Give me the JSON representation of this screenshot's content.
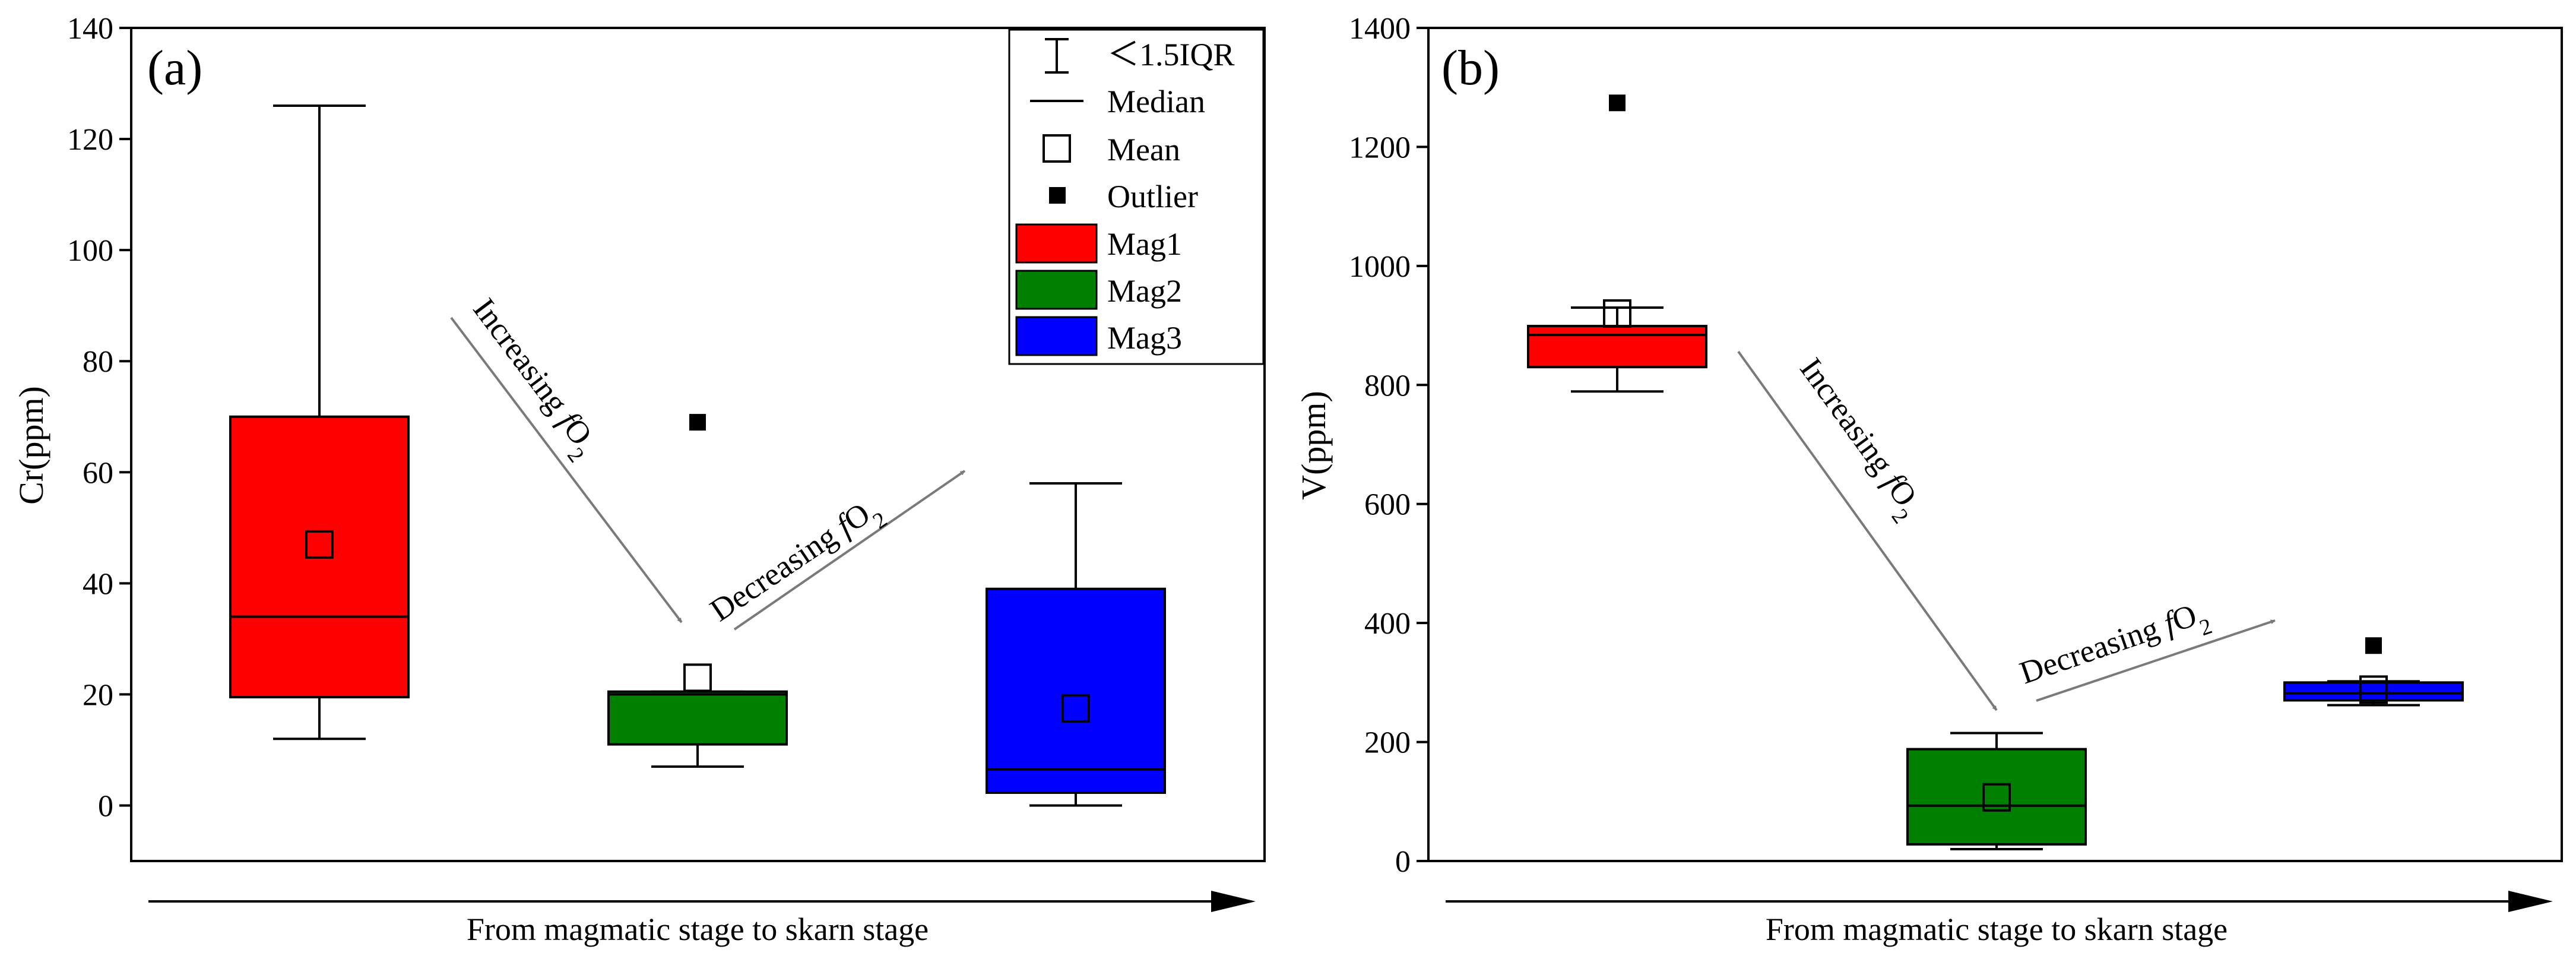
{
  "chart_data": [
    {
      "type": "box",
      "panel_label": "(a)",
      "ylabel": "Cr(ppm)",
      "xlabel": "From magmatic stage to skarn stage",
      "ylim": [
        -10,
        140
      ],
      "yticks": [
        0,
        20,
        40,
        60,
        80,
        100,
        120,
        140
      ],
      "categories": [
        "Mag1",
        "Mag2",
        "Mag3"
      ],
      "boxes": [
        {
          "name": "Mag1",
          "color": "#ff0000",
          "whisker_low": 12,
          "q1": 19.5,
          "median": 34,
          "q3": 70,
          "whisker_high": 126,
          "mean": 47,
          "outliers": []
        },
        {
          "name": "Mag2",
          "color": "#008000",
          "whisker_low": 7,
          "q1": 11,
          "median": 20,
          "q3": 20.5,
          "whisker_high": 20.5,
          "mean": 23,
          "outliers": [
            69
          ]
        },
        {
          "name": "Mag3",
          "color": "#0000ff",
          "whisker_low": 0,
          "q1": 2.3,
          "median": 6.5,
          "q3": 39,
          "whisker_high": 58,
          "mean": 17.5,
          "outliers": []
        }
      ],
      "annotations": [
        {
          "text": "Increasing ",
          "italic": "f",
          "main": "O",
          "sub": "2"
        },
        {
          "text": "Decreasing ",
          "italic": "f",
          "main": "O",
          "sub": "2"
        }
      ],
      "legend": {
        "placement": "top-right",
        "items": [
          {
            "label": "＜1.5IQR",
            "kind": "whisker"
          },
          {
            "label": "Median",
            "kind": "line"
          },
          {
            "label": "Mean",
            "kind": "open-square"
          },
          {
            "label": "Outlier",
            "kind": "filled-square"
          },
          {
            "label": "Mag1",
            "kind": "box",
            "color": "#ff0000"
          },
          {
            "label": "Mag2",
            "kind": "box",
            "color": "#008000"
          },
          {
            "label": "Mag3",
            "kind": "box",
            "color": "#0000ff"
          }
        ]
      }
    },
    {
      "type": "box",
      "panel_label": "(b)",
      "ylabel": "V(ppm)",
      "xlabel": "From magmatic stage to skarn stage",
      "ylim": [
        0,
        1400
      ],
      "yticks": [
        0,
        200,
        400,
        600,
        800,
        1000,
        1200,
        1400
      ],
      "categories": [
        "Mag1",
        "Mag2",
        "Mag3"
      ],
      "boxes": [
        {
          "name": "Mag1",
          "color": "#ff0000",
          "whisker_low": 789,
          "q1": 830,
          "median": 884,
          "q3": 899,
          "whisker_high": 930,
          "mean": 920,
          "outliers": [
            1274
          ]
        },
        {
          "name": "Mag2",
          "color": "#008000",
          "whisker_low": 20,
          "q1": 28,
          "median": 93,
          "q3": 188,
          "whisker_high": 215,
          "mean": 107,
          "outliers": []
        },
        {
          "name": "Mag3",
          "color": "#0000ff",
          "whisker_low": 262,
          "q1": 270,
          "median": 282,
          "q3": 300,
          "whisker_high": 302,
          "mean": 288,
          "outliers": [
            362
          ]
        }
      ],
      "annotations": [
        {
          "text": "Increasing ",
          "italic": "f",
          "main": "O",
          "sub": "2"
        },
        {
          "text": "Decreasing ",
          "italic": "f",
          "main": "O",
          "sub": "2"
        }
      ]
    }
  ]
}
